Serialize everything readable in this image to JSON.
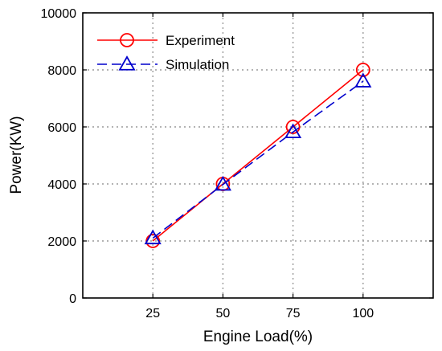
{
  "chart_data": {
    "type": "line",
    "title": "",
    "xlabel": "Engine Load(%)",
    "ylabel": "Power(KW)",
    "x": [
      25,
      50,
      75,
      100
    ],
    "x_ticks": [
      "25",
      "50",
      "75",
      "100"
    ],
    "xlim": [
      0,
      125
    ],
    "ylim": [
      0,
      10000
    ],
    "y_ticks": [
      "0",
      "2000",
      "4000",
      "6000",
      "8000",
      "10000"
    ],
    "grid": true,
    "legend_position": "top-left",
    "series": [
      {
        "name": "Experiment",
        "values": [
          2000,
          4000,
          6000,
          8000
        ],
        "color": "#ff0000",
        "line_style": "solid",
        "marker": "circle"
      },
      {
        "name": "Simulation",
        "values": [
          2100,
          3980,
          5820,
          7600
        ],
        "color": "#0000cc",
        "line_style": "dashed",
        "marker": "triangle"
      }
    ]
  }
}
